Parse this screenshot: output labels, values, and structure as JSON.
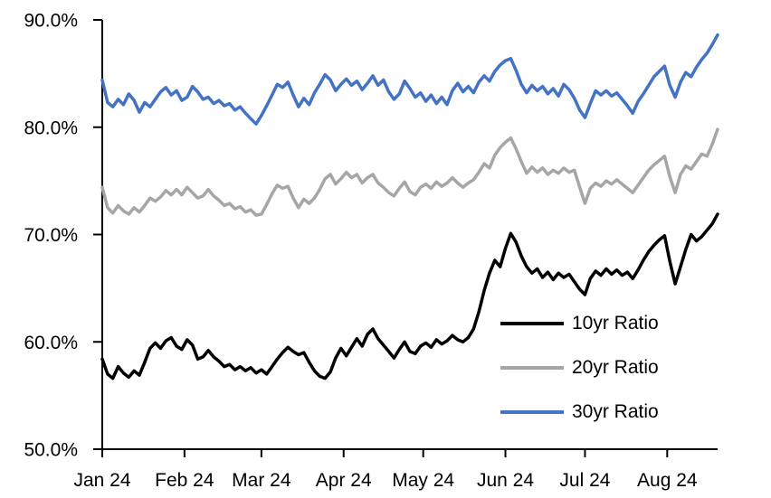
{
  "chart_data": {
    "type": "line",
    "title": "",
    "grid": false,
    "background": "#ffffff",
    "axis_color": "#000000",
    "legend_position": "inside-bottom-right",
    "x_axis": {
      "tick_labels": [
        "Jan 24",
        "Feb 24",
        "Mar 24",
        "Apr 24",
        "May 24",
        "Jun 24",
        "Jul 24",
        "Aug 24"
      ],
      "tick_day_offsets": [
        0,
        31,
        60,
        91,
        121,
        152,
        182,
        213
      ],
      "span_days": 232,
      "step_days_between_points": 2
    },
    "y_axis": {
      "tick_labels": [
        "90.0%",
        "80.0%",
        "70.0%",
        "60.0%",
        "50.0%"
      ],
      "tick_values": [
        90,
        80,
        70,
        60,
        50
      ],
      "min": 50,
      "max": 90,
      "unit": "%"
    },
    "series": [
      {
        "name": "10yr Ratio",
        "color": "#000000",
        "values": [
          58.4,
          57.0,
          56.6,
          57.7,
          57.1,
          56.7,
          57.3,
          56.9,
          58.1,
          59.4,
          59.9,
          59.4,
          60.1,
          60.4,
          59.6,
          59.3,
          60.2,
          59.7,
          58.4,
          58.6,
          59.2,
          58.6,
          58.2,
          57.7,
          57.9,
          57.4,
          57.7,
          57.3,
          57.6,
          57.1,
          57.4,
          57.0,
          57.7,
          58.4,
          59.0,
          59.5,
          59.1,
          58.8,
          59.0,
          58.1,
          57.3,
          56.8,
          56.6,
          57.2,
          58.5,
          59.4,
          58.7,
          59.5,
          60.3,
          59.6,
          60.7,
          61.2,
          60.3,
          59.7,
          59.1,
          58.5,
          59.3,
          60.0,
          59.1,
          58.9,
          59.6,
          59.9,
          59.5,
          60.2,
          59.8,
          60.1,
          60.6,
          60.2,
          60.0,
          60.4,
          61.2,
          62.8,
          64.8,
          66.4,
          67.6,
          67.0,
          68.7,
          70.1,
          69.3,
          68.0,
          67.0,
          66.4,
          66.8,
          66.0,
          66.5,
          65.8,
          66.4,
          66.0,
          66.3,
          65.6,
          64.9,
          64.4,
          65.9,
          66.6,
          66.2,
          66.8,
          66.3,
          66.7,
          66.2,
          66.5,
          65.9,
          66.7,
          67.6,
          68.4,
          69.0,
          69.5,
          69.9,
          67.5,
          65.4,
          67.0,
          68.6,
          70.0,
          69.4,
          69.8,
          70.4,
          71.0,
          71.9
        ]
      },
      {
        "name": "20yr Ratio",
        "color": "#A6A6A6",
        "values": [
          74.4,
          72.5,
          72.0,
          72.7,
          72.2,
          71.9,
          72.5,
          72.1,
          72.7,
          73.4,
          73.1,
          73.5,
          74.1,
          73.7,
          74.2,
          73.7,
          74.4,
          73.9,
          73.4,
          73.6,
          74.2,
          73.6,
          73.2,
          72.7,
          72.9,
          72.4,
          72.6,
          72.1,
          72.3,
          71.8,
          71.9,
          72.8,
          73.8,
          74.6,
          74.3,
          74.5,
          73.4,
          72.5,
          73.3,
          72.9,
          73.4,
          74.2,
          75.2,
          75.6,
          74.7,
          75.2,
          75.8,
          75.3,
          75.6,
          74.8,
          75.3,
          75.6,
          74.8,
          74.4,
          73.9,
          73.6,
          74.3,
          74.9,
          74.0,
          73.7,
          74.4,
          74.7,
          74.3,
          74.9,
          74.5,
          74.8,
          75.3,
          74.8,
          74.4,
          74.8,
          75.1,
          75.8,
          76.6,
          76.2,
          77.4,
          78.1,
          78.6,
          79.0,
          78.0,
          76.8,
          75.7,
          76.3,
          75.8,
          76.2,
          75.6,
          76.0,
          75.7,
          76.2,
          75.8,
          76.0,
          74.4,
          72.9,
          74.3,
          74.8,
          74.5,
          75.0,
          74.7,
          75.1,
          74.7,
          74.3,
          73.9,
          74.6,
          75.3,
          76.0,
          76.5,
          76.9,
          77.3,
          75.4,
          73.9,
          75.6,
          76.4,
          76.1,
          76.8,
          77.5,
          77.3,
          78.4,
          79.8
        ]
      },
      {
        "name": "30yr Ratio",
        "color": "#4472C4",
        "values": [
          84.4,
          82.3,
          81.9,
          82.6,
          82.1,
          83.1,
          82.5,
          81.4,
          82.3,
          81.9,
          82.6,
          83.3,
          83.7,
          83.0,
          83.4,
          82.5,
          82.8,
          83.8,
          83.3,
          82.6,
          82.8,
          82.2,
          82.5,
          82.0,
          82.2,
          81.6,
          81.9,
          81.3,
          80.8,
          80.3,
          81.1,
          82.0,
          83.0,
          84.0,
          83.7,
          84.2,
          83.0,
          81.9,
          82.7,
          82.1,
          83.2,
          84.0,
          84.9,
          84.4,
          83.4,
          84.0,
          84.5,
          83.9,
          84.3,
          83.5,
          84.1,
          84.8,
          83.9,
          84.4,
          83.3,
          82.6,
          83.1,
          84.3,
          83.6,
          82.8,
          83.2,
          82.4,
          83.0,
          82.2,
          82.8,
          82.1,
          83.4,
          84.1,
          83.3,
          83.8,
          83.2,
          84.2,
          84.8,
          84.3,
          85.2,
          85.8,
          86.2,
          86.4,
          85.3,
          84.0,
          83.2,
          83.9,
          83.4,
          83.8,
          83.1,
          83.6,
          82.9,
          84.0,
          83.5,
          82.7,
          81.6,
          80.9,
          82.2,
          83.4,
          83.0,
          83.4,
          82.9,
          83.2,
          82.6,
          82.0,
          81.3,
          82.4,
          83.1,
          83.9,
          84.7,
          85.2,
          85.7,
          83.9,
          82.8,
          84.2,
          85.1,
          84.7,
          85.6,
          86.3,
          86.9,
          87.7,
          88.6
        ]
      }
    ]
  }
}
